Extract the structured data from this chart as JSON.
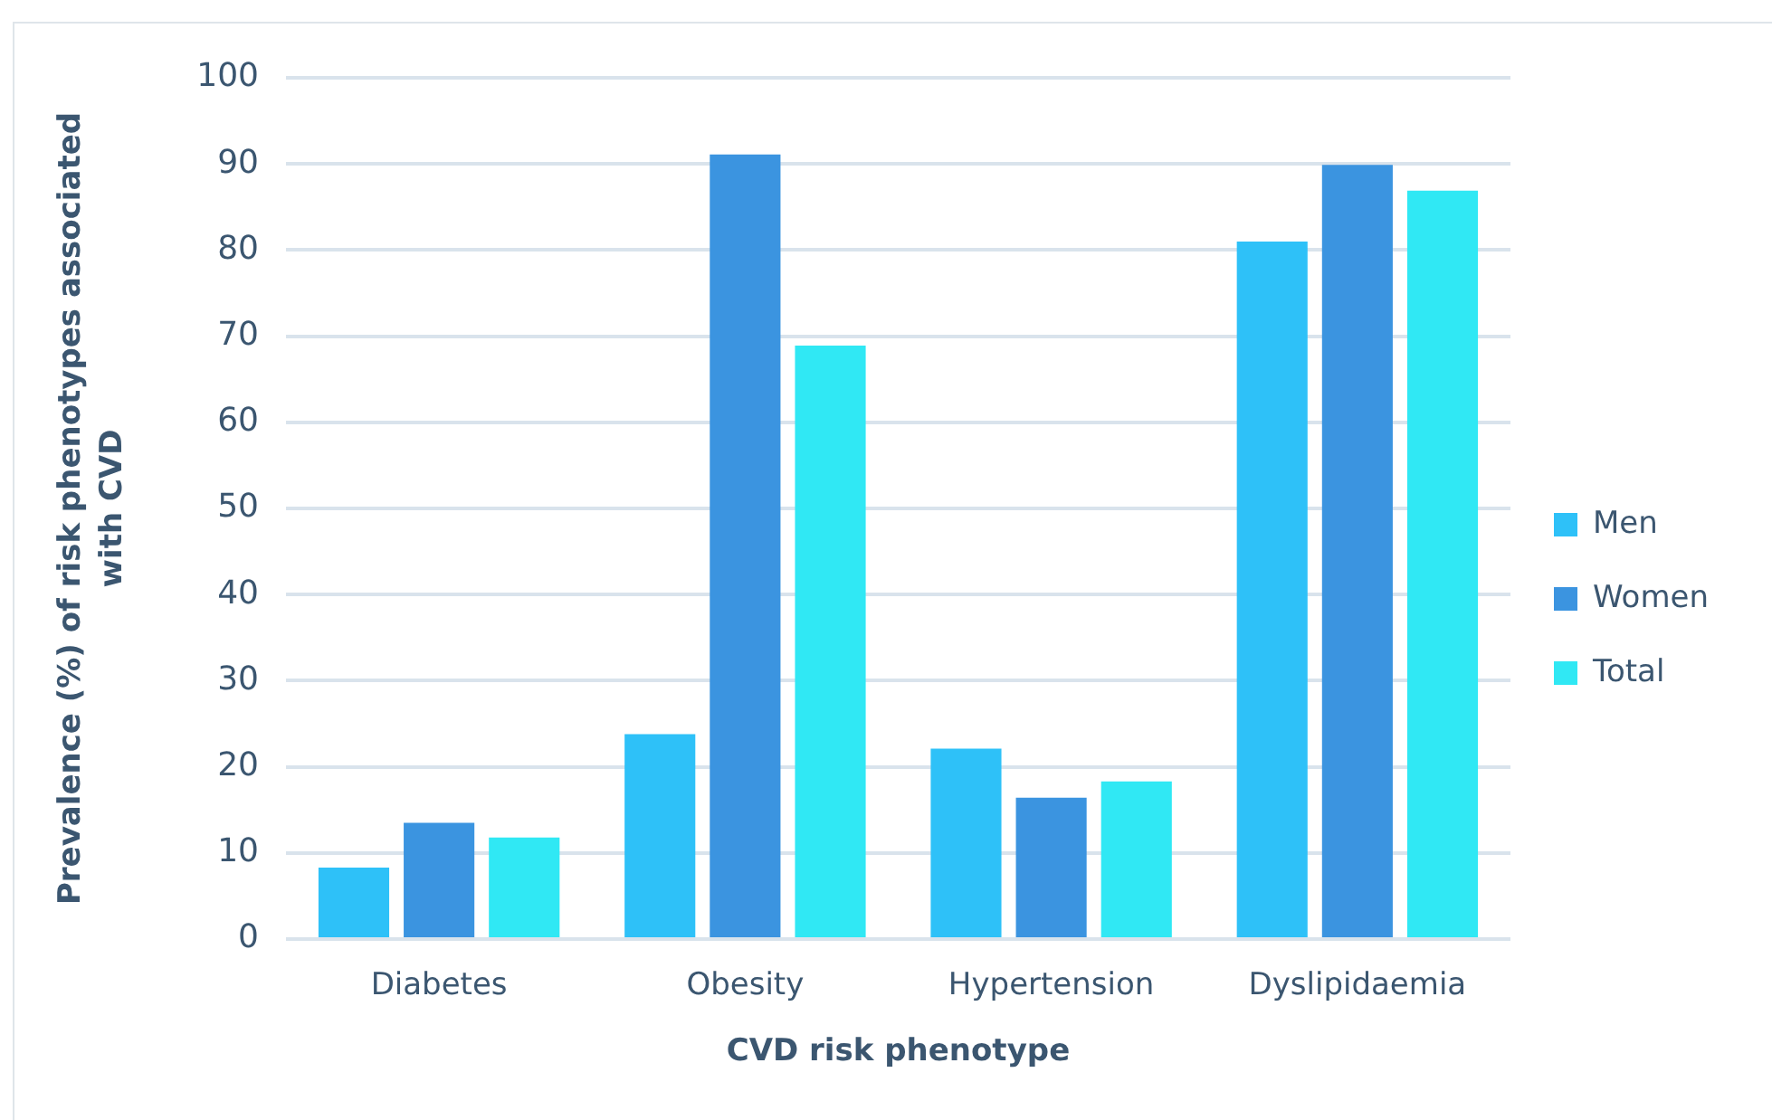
{
  "chart_data": {
    "type": "bar",
    "xlabel": "CVD risk phenotype",
    "ylabel": "Prevalence (%) of risk phenotypes associated with CVD",
    "categories": [
      "Diabetes",
      "Obesity",
      "Hypertension",
      "Dyslipidaemia"
    ],
    "series": [
      {
        "name": "Men",
        "color": "#2ec1f8",
        "values": [
          8.3,
          23.8,
          22.1,
          81.0
        ]
      },
      {
        "name": "Women",
        "color": "#3b94e0",
        "values": [
          13.5,
          91.1,
          16.4,
          89.9
        ]
      },
      {
        "name": "Total",
        "color": "#30e8f4",
        "values": [
          11.8,
          68.9,
          18.3,
          86.9
        ]
      }
    ],
    "ylim": [
      0,
      100
    ],
    "yticks": [
      0,
      10,
      20,
      30,
      40,
      50,
      60,
      70,
      80,
      90,
      100
    ],
    "grid": "y",
    "legend": "right"
  }
}
